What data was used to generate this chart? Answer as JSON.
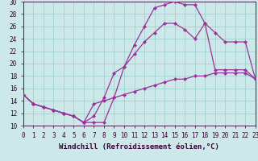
{
  "bg_color": "#cce8e8",
  "grid_color": "#99cccc",
  "line_color": "#993399",
  "xlabel": "Windchill (Refroidissement éolien,°C)",
  "xlim": [
    0,
    23
  ],
  "ylim": [
    10,
    30
  ],
  "yticks": [
    10,
    12,
    14,
    16,
    18,
    20,
    22,
    24,
    26,
    28,
    30
  ],
  "xticks": [
    0,
    1,
    2,
    3,
    4,
    5,
    6,
    7,
    8,
    9,
    10,
    11,
    12,
    13,
    14,
    15,
    16,
    17,
    18,
    19,
    20,
    21,
    22,
    23
  ],
  "curve1_x": [
    0,
    1,
    2,
    3,
    4,
    5,
    6,
    7,
    8,
    9,
    10,
    11,
    12,
    13,
    14,
    15,
    16,
    17,
    18,
    19,
    20,
    21,
    22,
    23
  ],
  "curve1_y": [
    15,
    13.5,
    13,
    12.5,
    12,
    11.5,
    10.5,
    10.5,
    10.5,
    14.5,
    19.5,
    23.0,
    26.0,
    29.0,
    29.5,
    30.0,
    29.5,
    29.5,
    26.5,
    19.0,
    19.0,
    19.0,
    19.0,
    17.5
  ],
  "curve2_x": [
    0,
    1,
    2,
    3,
    4,
    5,
    6,
    7,
    8,
    9,
    10,
    11,
    12,
    13,
    14,
    15,
    16,
    17,
    18,
    19,
    20,
    21,
    22,
    23
  ],
  "curve2_y": [
    15,
    13.5,
    13,
    12.5,
    12,
    11.5,
    10.5,
    11.5,
    14.5,
    18.5,
    19.5,
    21.5,
    23.5,
    25.0,
    26.5,
    26.5,
    25.5,
    24.0,
    26.5,
    25.0,
    23.5,
    23.5,
    23.5,
    17.5
  ],
  "curve3_x": [
    0,
    1,
    2,
    3,
    4,
    5,
    6,
    7,
    8,
    9,
    10,
    11,
    12,
    13,
    14,
    15,
    16,
    17,
    18,
    19,
    20,
    21,
    22,
    23
  ],
  "curve3_y": [
    15,
    13.5,
    13,
    12.5,
    12,
    11.5,
    10.5,
    13.5,
    14.0,
    14.5,
    15.0,
    15.5,
    16.0,
    16.5,
    17.0,
    17.5,
    17.5,
    18.0,
    18.0,
    18.5,
    18.5,
    18.5,
    18.5,
    17.5
  ],
  "tick_fontsize": 5.5,
  "axis_fontsize": 6.5,
  "linewidth": 0.9,
  "markersize": 2.2
}
